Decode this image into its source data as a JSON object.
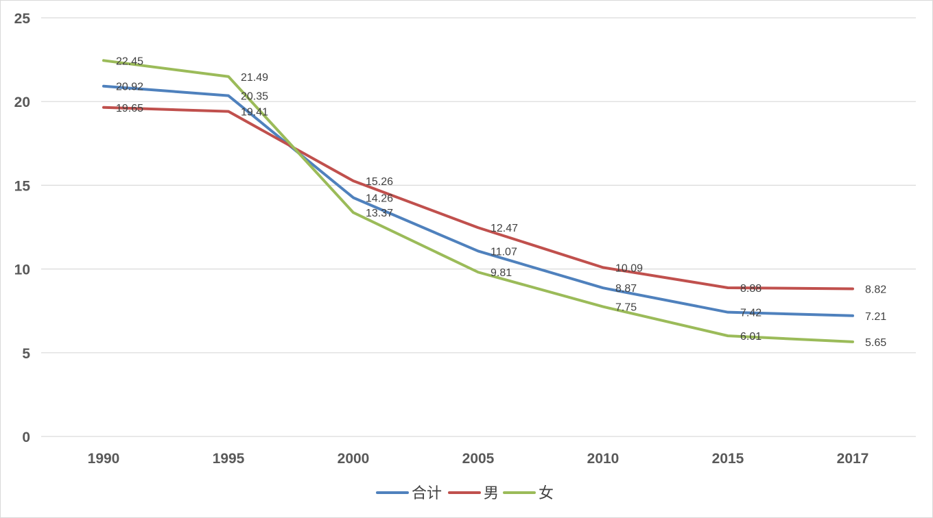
{
  "chart_data": {
    "type": "line",
    "title": "",
    "xlabel": "",
    "ylabel": "",
    "categories": [
      "1990",
      "1995",
      "2000",
      "2005",
      "2010",
      "2015",
      "2017"
    ],
    "ylim": [
      0,
      25
    ],
    "yticks": [
      "0",
      "5",
      "10",
      "15",
      "20",
      "25"
    ],
    "grid": true,
    "legend_position": "bottom",
    "series": [
      {
        "name": "合计",
        "color": "#4f81bd",
        "values": [
          20.92,
          20.35,
          14.26,
          11.07,
          8.87,
          7.42,
          7.21
        ],
        "labels": [
          "20.92",
          "20.35",
          "14.26",
          "11.07",
          "8.87",
          "7.42",
          "7.21"
        ]
      },
      {
        "name": "男",
        "color": "#c0504d",
        "values": [
          19.65,
          19.41,
          15.26,
          12.47,
          10.09,
          8.88,
          8.82
        ],
        "labels": [
          "19.65",
          "19.41",
          "15.26",
          "12.47",
          "10.09",
          "8.88",
          "8.82"
        ]
      },
      {
        "name": "女",
        "color": "#9bbb59",
        "values": [
          22.45,
          21.49,
          13.37,
          9.81,
          7.75,
          6.01,
          5.65
        ],
        "labels": [
          "22.45",
          "21.49",
          "13.37",
          "9.81",
          "7.75",
          "6.01",
          "5.65"
        ]
      }
    ]
  }
}
